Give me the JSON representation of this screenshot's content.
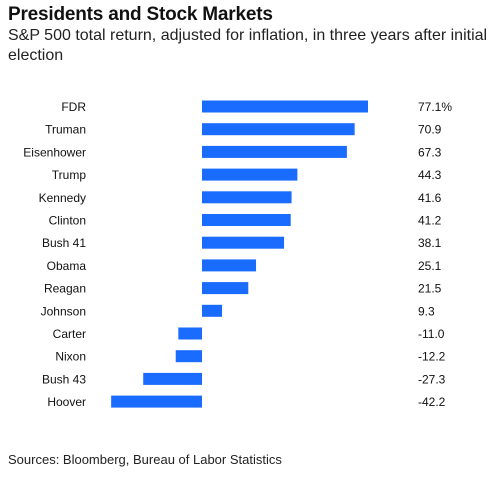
{
  "header": {
    "title": "Presidents and Stock Markets",
    "subtitle": "S&P 500 total return, adjusted for inflation, in three years after initial election"
  },
  "footer": {
    "source": "Sources: Bloomberg, Bureau of Labor Statistics"
  },
  "colors": {
    "bar": "#1a6bff",
    "text": "#111111"
  },
  "chart_data": {
    "type": "bar",
    "orientation": "horizontal",
    "categories": [
      "FDR",
      "Truman",
      "Eisenhower",
      "Trump",
      "Kennedy",
      "Clinton",
      "Bush 41",
      "Obama",
      "Reagan",
      "Johnson",
      "Carter",
      "Nixon",
      "Bush 43",
      "Hoover"
    ],
    "values": [
      77.1,
      70.9,
      67.3,
      44.3,
      41.6,
      41.2,
      38.1,
      25.1,
      21.5,
      9.3,
      -11.0,
      -12.2,
      -27.3,
      -42.2
    ],
    "value_labels": [
      "77.1%",
      "70.9",
      "67.3",
      "44.3",
      "41.6",
      "41.2",
      "38.1",
      "25.1",
      "21.5",
      "9.3",
      "-11.0",
      "-12.2",
      "-27.3",
      "-42.2"
    ],
    "xlim": [
      -42.2,
      77.1
    ],
    "grid": false,
    "legend": "none"
  }
}
